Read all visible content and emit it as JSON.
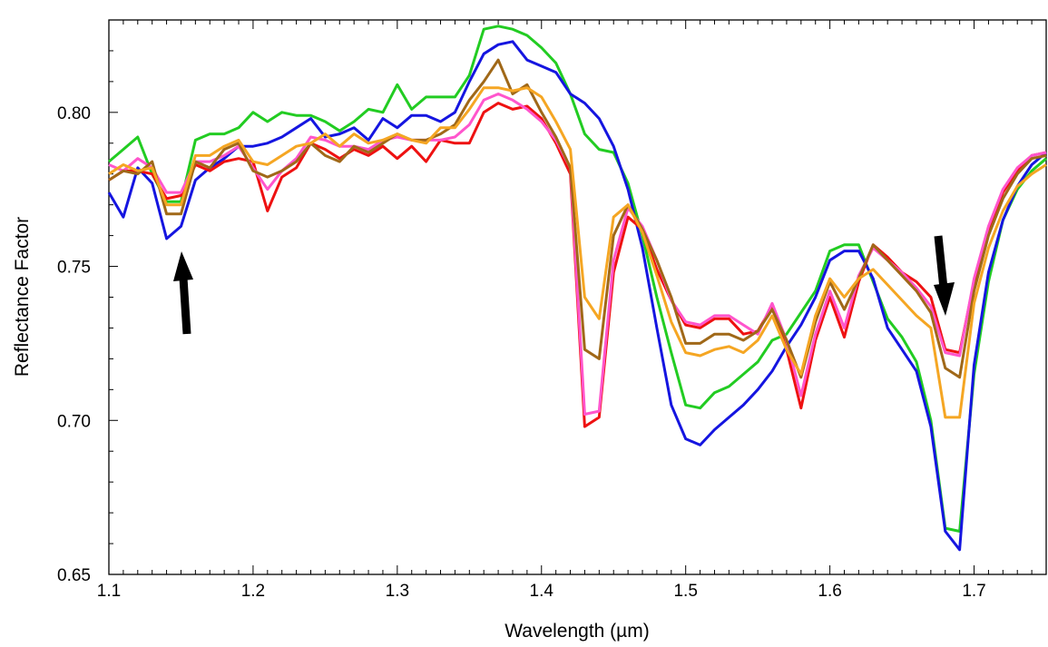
{
  "chart_data": {
    "type": "line",
    "title": "",
    "xlabel": "Wavelength (µm)",
    "ylabel": "Reflectance Factor",
    "xlim": [
      1.1,
      1.75
    ],
    "ylim": [
      0.65,
      0.83
    ],
    "x_ticks": [
      "1.1",
      "1.2",
      "1.3",
      "1.4",
      "1.5",
      "1.6",
      "1.7"
    ],
    "x_tick_values": [
      1.1,
      1.2,
      1.3,
      1.4,
      1.5,
      1.6,
      1.7
    ],
    "y_ticks": [
      "0.65",
      "0.70",
      "0.75",
      "0.80"
    ],
    "y_tick_values": [
      0.65,
      0.7,
      0.75,
      0.8
    ],
    "grid": false,
    "legend": "none",
    "x": [
      1.1,
      1.11,
      1.12,
      1.13,
      1.14,
      1.15,
      1.16,
      1.17,
      1.18,
      1.19,
      1.2,
      1.21,
      1.22,
      1.23,
      1.24,
      1.25,
      1.26,
      1.27,
      1.28,
      1.29,
      1.3,
      1.31,
      1.32,
      1.33,
      1.34,
      1.35,
      1.36,
      1.37,
      1.38,
      1.39,
      1.4,
      1.41,
      1.42,
      1.43,
      1.44,
      1.45,
      1.46,
      1.47,
      1.48,
      1.49,
      1.5,
      1.51,
      1.52,
      1.53,
      1.54,
      1.55,
      1.56,
      1.57,
      1.58,
      1.59,
      1.6,
      1.61,
      1.62,
      1.63,
      1.64,
      1.65,
      1.66,
      1.67,
      1.68,
      1.69,
      1.7,
      1.71,
      1.72,
      1.73,
      1.74,
      1.75
    ],
    "series": [
      {
        "color": "#22cc22",
        "values": [
          0.784,
          0.788,
          0.792,
          0.78,
          0.771,
          0.771,
          0.791,
          0.793,
          0.793,
          0.795,
          0.8,
          0.797,
          0.8,
          0.799,
          0.799,
          0.797,
          0.794,
          0.797,
          0.801,
          0.8,
          0.809,
          0.801,
          0.805,
          0.805,
          0.805,
          0.812,
          0.827,
          0.828,
          0.827,
          0.825,
          0.821,
          0.816,
          0.806,
          0.793,
          0.788,
          0.787,
          0.777,
          0.76,
          0.74,
          0.722,
          0.705,
          0.704,
          0.709,
          0.711,
          0.715,
          0.719,
          0.726,
          0.728,
          0.735,
          0.742,
          0.755,
          0.757,
          0.757,
          0.745,
          0.733,
          0.727,
          0.719,
          0.7,
          0.665,
          0.664,
          0.715,
          0.745,
          0.765,
          0.775,
          0.781,
          0.785
        ]
      },
      {
        "color": "#1515e0",
        "values": [
          0.774,
          0.766,
          0.782,
          0.777,
          0.759,
          0.763,
          0.778,
          0.782,
          0.785,
          0.789,
          0.789,
          0.79,
          0.792,
          0.795,
          0.798,
          0.792,
          0.793,
          0.795,
          0.791,
          0.798,
          0.795,
          0.799,
          0.799,
          0.797,
          0.8,
          0.81,
          0.819,
          0.822,
          0.823,
          0.817,
          0.815,
          0.813,
          0.806,
          0.803,
          0.798,
          0.789,
          0.775,
          0.756,
          0.73,
          0.705,
          0.694,
          0.692,
          0.697,
          0.701,
          0.705,
          0.71,
          0.716,
          0.724,
          0.731,
          0.74,
          0.752,
          0.755,
          0.755,
          0.746,
          0.73,
          0.723,
          0.716,
          0.698,
          0.664,
          0.658,
          0.718,
          0.748,
          0.765,
          0.776,
          0.783,
          0.787
        ]
      },
      {
        "color": "#ee1111",
        "values": [
          0.778,
          0.781,
          0.781,
          0.78,
          0.772,
          0.773,
          0.783,
          0.781,
          0.784,
          0.785,
          0.784,
          0.768,
          0.779,
          0.782,
          0.79,
          0.788,
          0.785,
          0.788,
          0.786,
          0.789,
          0.785,
          0.789,
          0.784,
          0.791,
          0.79,
          0.79,
          0.8,
          0.803,
          0.801,
          0.802,
          0.798,
          0.79,
          0.78,
          0.698,
          0.701,
          0.748,
          0.766,
          0.762,
          0.749,
          0.739,
          0.731,
          0.73,
          0.733,
          0.733,
          0.728,
          0.729,
          0.737,
          0.723,
          0.704,
          0.726,
          0.74,
          0.727,
          0.745,
          0.757,
          0.753,
          0.748,
          0.745,
          0.74,
          0.723,
          0.722,
          0.745,
          0.762,
          0.774,
          0.781,
          0.786,
          0.787
        ]
      },
      {
        "color": "#ff55cc",
        "values": [
          0.783,
          0.781,
          0.785,
          0.782,
          0.774,
          0.774,
          0.784,
          0.784,
          0.786,
          0.789,
          0.782,
          0.775,
          0.781,
          0.785,
          0.792,
          0.791,
          0.789,
          0.789,
          0.788,
          0.791,
          0.792,
          0.791,
          0.791,
          0.791,
          0.792,
          0.796,
          0.804,
          0.806,
          0.804,
          0.801,
          0.797,
          0.791,
          0.782,
          0.702,
          0.703,
          0.752,
          0.769,
          0.763,
          0.752,
          0.739,
          0.732,
          0.731,
          0.734,
          0.734,
          0.731,
          0.728,
          0.738,
          0.726,
          0.708,
          0.728,
          0.742,
          0.73,
          0.747,
          0.756,
          0.752,
          0.748,
          0.743,
          0.737,
          0.722,
          0.721,
          0.746,
          0.763,
          0.775,
          0.782,
          0.786,
          0.787
        ]
      },
      {
        "color": "#a06818",
        "values": [
          0.778,
          0.781,
          0.78,
          0.784,
          0.767,
          0.767,
          0.784,
          0.782,
          0.788,
          0.79,
          0.781,
          0.779,
          0.781,
          0.784,
          0.79,
          0.786,
          0.784,
          0.789,
          0.787,
          0.79,
          0.793,
          0.791,
          0.791,
          0.793,
          0.796,
          0.804,
          0.81,
          0.817,
          0.806,
          0.809,
          0.8,
          0.792,
          0.782,
          0.723,
          0.72,
          0.76,
          0.77,
          0.762,
          0.752,
          0.74,
          0.725,
          0.725,
          0.728,
          0.728,
          0.726,
          0.729,
          0.736,
          0.726,
          0.714,
          0.732,
          0.745,
          0.736,
          0.746,
          0.757,
          0.752,
          0.747,
          0.742,
          0.735,
          0.717,
          0.714,
          0.742,
          0.76,
          0.772,
          0.78,
          0.785,
          0.786
        ]
      },
      {
        "color": "#f5a623",
        "values": [
          0.78,
          0.783,
          0.781,
          0.782,
          0.77,
          0.77,
          0.786,
          0.786,
          0.789,
          0.791,
          0.784,
          0.783,
          0.786,
          0.789,
          0.79,
          0.793,
          0.789,
          0.793,
          0.79,
          0.791,
          0.793,
          0.791,
          0.79,
          0.795,
          0.795,
          0.801,
          0.808,
          0.808,
          0.807,
          0.808,
          0.805,
          0.797,
          0.788,
          0.74,
          0.733,
          0.766,
          0.77,
          0.761,
          0.747,
          0.732,
          0.722,
          0.721,
          0.723,
          0.724,
          0.722,
          0.726,
          0.734,
          0.723,
          0.715,
          0.734,
          0.746,
          0.74,
          0.746,
          0.749,
          0.744,
          0.739,
          0.734,
          0.73,
          0.701,
          0.701,
          0.738,
          0.756,
          0.768,
          0.776,
          0.78,
          0.783
        ]
      }
    ]
  }
}
